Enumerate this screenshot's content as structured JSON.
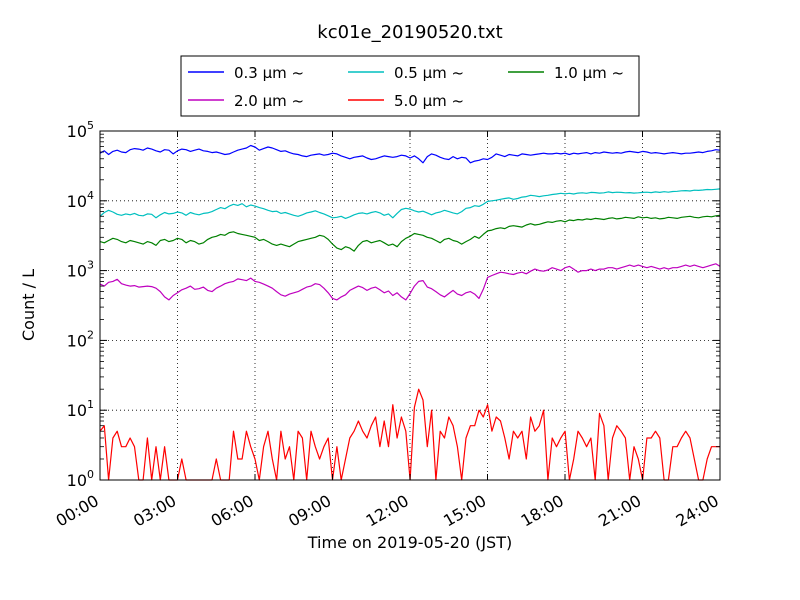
{
  "chart_data": {
    "type": "line",
    "title": "kc01e_20190520.txt",
    "xlabel": "Time on 2019-05-20 (JST)",
    "ylabel": "Count / L",
    "x_ticks": [
      "00:00",
      "03:00",
      "06:00",
      "09:00",
      "12:00",
      "15:00",
      "18:00",
      "21:00",
      "24:00"
    ],
    "x_range_hours": [
      0,
      24
    ],
    "y_scale": "log",
    "ylim": [
      1,
      100000
    ],
    "y_ticks": [
      {
        "base": "10",
        "exp": "0"
      },
      {
        "base": "10",
        "exp": "1"
      },
      {
        "base": "10",
        "exp": "2"
      },
      {
        "base": "10",
        "exp": "3"
      },
      {
        "base": "10",
        "exp": "4"
      },
      {
        "base": "10",
        "exp": "5"
      }
    ],
    "grid": true,
    "legend_position": "top-center",
    "sample_interval_hours": 0.1667,
    "series": [
      {
        "name": "0.3 μm ~",
        "color": "#0000ff",
        "values": [
          48000,
          52000,
          46000,
          51000,
          53000,
          50000,
          49000,
          54000,
          56000,
          55000,
          53000,
          57000,
          55000,
          52000,
          50000,
          54000,
          53000,
          47000,
          52000,
          55000,
          54000,
          51000,
          53000,
          55000,
          52000,
          51000,
          49000,
          50000,
          48000,
          46000,
          47000,
          50000,
          53000,
          55000,
          57000,
          62000,
          59000,
          53000,
          56000,
          59000,
          57000,
          54000,
          51000,
          52000,
          49000,
          47000,
          46000,
          44000,
          43000,
          45000,
          46000,
          47000,
          45000,
          46000,
          48000,
          47000,
          44000,
          42000,
          40000,
          42000,
          43000,
          44000,
          41000,
          39000,
          40000,
          42000,
          44000,
          43000,
          42000,
          43000,
          45000,
          44000,
          41000,
          44000,
          40000,
          35000,
          43000,
          47000,
          45000,
          42000,
          40000,
          39000,
          43000,
          40000,
          42000,
          41000,
          35000,
          37000,
          38000,
          40000,
          39000,
          42000,
          47000,
          45000,
          43000,
          46000,
          45000,
          44000,
          47000,
          46000,
          45000,
          46000,
          47000,
          48000,
          47000,
          47000,
          48000,
          47000,
          48000,
          46000,
          48000,
          47000,
          48000,
          49000,
          47000,
          49000,
          48000,
          50000,
          49000,
          48000,
          49000,
          48000,
          50000,
          51000,
          50000,
          49000,
          51000,
          50000,
          48000,
          49000,
          48000,
          47000,
          48000,
          49000,
          48000,
          47000,
          48000,
          48000,
          49000,
          50000,
          49000,
          51000,
          52000,
          54000,
          53000
        ]
      },
      {
        "name": "0.5 μm ~",
        "color": "#00bfbf",
        "values": [
          6000,
          6800,
          7300,
          6900,
          6400,
          6200,
          6500,
          6300,
          6600,
          6200,
          6100,
          6500,
          6400,
          5700,
          6300,
          6800,
          6500,
          6600,
          6900,
          6700,
          6200,
          6800,
          6500,
          6300,
          6600,
          6700,
          7000,
          7500,
          8000,
          7700,
          8400,
          8900,
          8600,
          9100,
          8200,
          8700,
          8400,
          8000,
          7700,
          7300,
          7000,
          7100,
          6600,
          6800,
          6500,
          6200,
          6000,
          6300,
          6700,
          6900,
          7200,
          6800,
          6500,
          6100,
          5700,
          5800,
          6000,
          5600,
          5900,
          6300,
          6600,
          6700,
          6500,
          6800,
          7000,
          6700,
          6200,
          6500,
          5700,
          6600,
          7500,
          7800,
          7600,
          7200,
          6900,
          7100,
          6700,
          6300,
          6700,
          6900,
          7300,
          7000,
          6700,
          6500,
          7000,
          7800,
          8000,
          8500,
          8300,
          8900,
          9800,
          10000,
          10200,
          10500,
          10800,
          11000,
          10500,
          10800,
          11300,
          11500,
          12000,
          11800,
          11500,
          11800,
          12000,
          12300,
          12500,
          12800,
          12600,
          12800,
          12500,
          12900,
          13000,
          12800,
          13200,
          13100,
          12900,
          13000,
          13400,
          13100,
          13300,
          13200,
          13000,
          13100,
          12900,
          13000,
          13200,
          13300,
          13100,
          13400,
          13200,
          13500,
          13300,
          13600,
          13700,
          13900,
          14000,
          13800,
          14200,
          14100,
          14300,
          14500,
          14400,
          14600,
          14800
        ]
      },
      {
        "name": "1.0 μm ~",
        "color": "#008000",
        "values": [
          2600,
          2500,
          2700,
          2900,
          2800,
          2600,
          2500,
          2700,
          2600,
          2500,
          2400,
          2600,
          2500,
          2300,
          2700,
          2800,
          2600,
          2700,
          2900,
          2800,
          2500,
          2700,
          2600,
          2400,
          2500,
          2800,
          3000,
          3100,
          3300,
          3200,
          3500,
          3600,
          3400,
          3300,
          3200,
          3100,
          3000,
          2700,
          2800,
          2600,
          2400,
          2300,
          2400,
          2300,
          2200,
          2400,
          2600,
          2700,
          2800,
          2900,
          3000,
          3200,
          3100,
          2800,
          2400,
          2100,
          2000,
          2200,
          2100,
          1900,
          2300,
          2600,
          2700,
          2500,
          2600,
          2700,
          2500,
          2300,
          2400,
          2200,
          2600,
          2900,
          3100,
          3400,
          3300,
          3200,
          3000,
          2900,
          2700,
          2500,
          2800,
          2900,
          2700,
          2600,
          2400,
          2600,
          2800,
          3100,
          2900,
          3300,
          3700,
          3800,
          4000,
          4100,
          4000,
          4300,
          4400,
          4300,
          4200,
          4500,
          4700,
          4500,
          4600,
          4800,
          5000,
          4900,
          5100,
          5200,
          5000,
          5300,
          5200,
          5400,
          5300,
          5500,
          5400,
          5600,
          5500,
          5400,
          5600,
          5700,
          5500,
          5600,
          5800,
          5700,
          5600,
          5900,
          5700,
          5800,
          5600,
          5700,
          5500,
          5600,
          5800,
          5700,
          5600,
          5800,
          5900,
          6000,
          5800,
          5700,
          5900,
          6000,
          5900,
          6100,
          6200
        ]
      },
      {
        "name": "2.0 μm ~",
        "color": "#bf00bf",
        "values": [
          640,
          600,
          680,
          700,
          750,
          650,
          620,
          600,
          610,
          580,
          590,
          600,
          590,
          560,
          500,
          420,
          380,
          440,
          480,
          530,
          560,
          600,
          540,
          550,
          580,
          520,
          500,
          560,
          600,
          650,
          680,
          700,
          760,
          740,
          720,
          780,
          700,
          680,
          640,
          600,
          560,
          500,
          450,
          430,
          460,
          480,
          500,
          540,
          580,
          600,
          650,
          630,
          560,
          480,
          400,
          380,
          420,
          450,
          520,
          560,
          600,
          570,
          520,
          560,
          580,
          530,
          480,
          510,
          440,
          480,
          420,
          380,
          470,
          600,
          700,
          720,
          580,
          550,
          500,
          450,
          420,
          470,
          520,
          460,
          440,
          480,
          500,
          460,
          400,
          540,
          800,
          850,
          900,
          950,
          930,
          900,
          880,
          920,
          950,
          900,
          980,
          1050,
          1000,
          980,
          1020,
          1100,
          1050,
          1000,
          1100,
          1150,
          1050,
          950,
          1000,
          1000,
          1050,
          1000,
          1050,
          1050,
          1100,
          1100,
          1050,
          1100,
          1150,
          1200,
          1150,
          1200,
          1150,
          1100,
          1150,
          1100,
          1050,
          1100,
          1050,
          1100,
          1100,
          1150,
          1200,
          1150,
          1200,
          1150,
          1100,
          1150,
          1200,
          1250,
          1150
        ]
      },
      {
        "name": "5.0 μm ~",
        "color": "#ff0000",
        "values": [
          5,
          6,
          1,
          4,
          5,
          3,
          3,
          4,
          3,
          1,
          1,
          4,
          1,
          3,
          1,
          3,
          1,
          1,
          1,
          2,
          1,
          1,
          1,
          1,
          1,
          1,
          1,
          2,
          1,
          1,
          1,
          5,
          2,
          2,
          5,
          3,
          2,
          1,
          3,
          5,
          2,
          1,
          5,
          2,
          3,
          1,
          5,
          4,
          1,
          5,
          3,
          2,
          3,
          4,
          1,
          3,
          1,
          2,
          4,
          5,
          7,
          5,
          4,
          6,
          8,
          3,
          7,
          3,
          12,
          4,
          8,
          5,
          1,
          11,
          20,
          14,
          3,
          10,
          1,
          5,
          4,
          8,
          6,
          3,
          1,
          4,
          6,
          6,
          10,
          8,
          12,
          5,
          8,
          7,
          4,
          2,
          5,
          4,
          5,
          2,
          8,
          5,
          6,
          10,
          1,
          4,
          3,
          4,
          5,
          1,
          2,
          5,
          4,
          3,
          4,
          1,
          9,
          6,
          1,
          4,
          6,
          5,
          4,
          1,
          3,
          2,
          1,
          4,
          4,
          5,
          4,
          1,
          1,
          3,
          3,
          4,
          5,
          4,
          2,
          1,
          1,
          2,
          3,
          3,
          3
        ]
      }
    ]
  }
}
